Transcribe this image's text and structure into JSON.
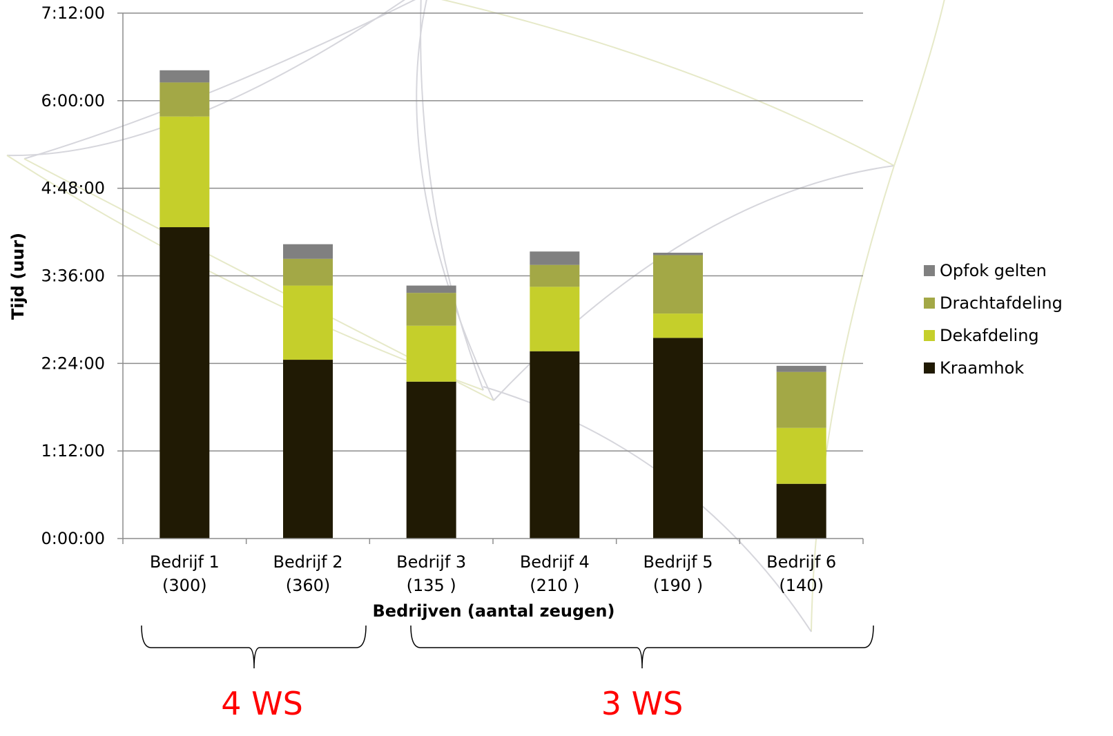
{
  "chart_data": {
    "type": "bar",
    "stacked": true,
    "ylabel": "Tijd (uur)",
    "xlabel": "Bedrijven (aantal zeugen)",
    "categories": [
      {
        "name": "Bedrijf 1",
        "sub": "(300)"
      },
      {
        "name": "Bedrijf 2",
        "sub": "(360)"
      },
      {
        "name": "Bedrijf 3",
        "sub": "(135 )"
      },
      {
        "name": "Bedrijf 4",
        "sub": "(210 )"
      },
      {
        "name": "Bedrijf 5",
        "sub": "(190 )"
      },
      {
        "name": "Bedrijf 6",
        "sub": "(140)"
      }
    ],
    "y_ticks": [
      "0:00:00",
      "1:12:00",
      "2:24:00",
      "3:36:00",
      "4:48:00",
      "6:00:00",
      "7:12:00"
    ],
    "y_unit": "minutes",
    "ylim": [
      0,
      432
    ],
    "series": [
      {
        "name": "Kraamhok",
        "color": "#201a04",
        "values": [
          256,
          147,
          129,
          154,
          165,
          45
        ]
      },
      {
        "name": "Dekafdeling",
        "color": "#c5cf2b",
        "values": [
          91,
          61,
          46,
          53,
          20,
          46
        ]
      },
      {
        "name": "Drachtafdeling",
        "color": "#a3a846",
        "values": [
          28,
          22,
          27,
          18,
          48,
          46
        ]
      },
      {
        "name": "Opfok gelten",
        "color": "#808080",
        "values": [
          10,
          12,
          6,
          11,
          2,
          5
        ]
      }
    ],
    "legend_position": "right",
    "legend_order": [
      "Opfok gelten",
      "Drachtafdeling",
      "Dekafdeling",
      "Kraamhok"
    ],
    "grid": true,
    "groups": [
      {
        "label": "4 WS",
        "categories": [
          "Bedrijf 1",
          "Bedrijf 2"
        ]
      },
      {
        "label": "3 WS",
        "categories": [
          "Bedrijf 3",
          "Bedrijf 4",
          "Bedrijf 5",
          "Bedrijf 6"
        ]
      }
    ]
  }
}
